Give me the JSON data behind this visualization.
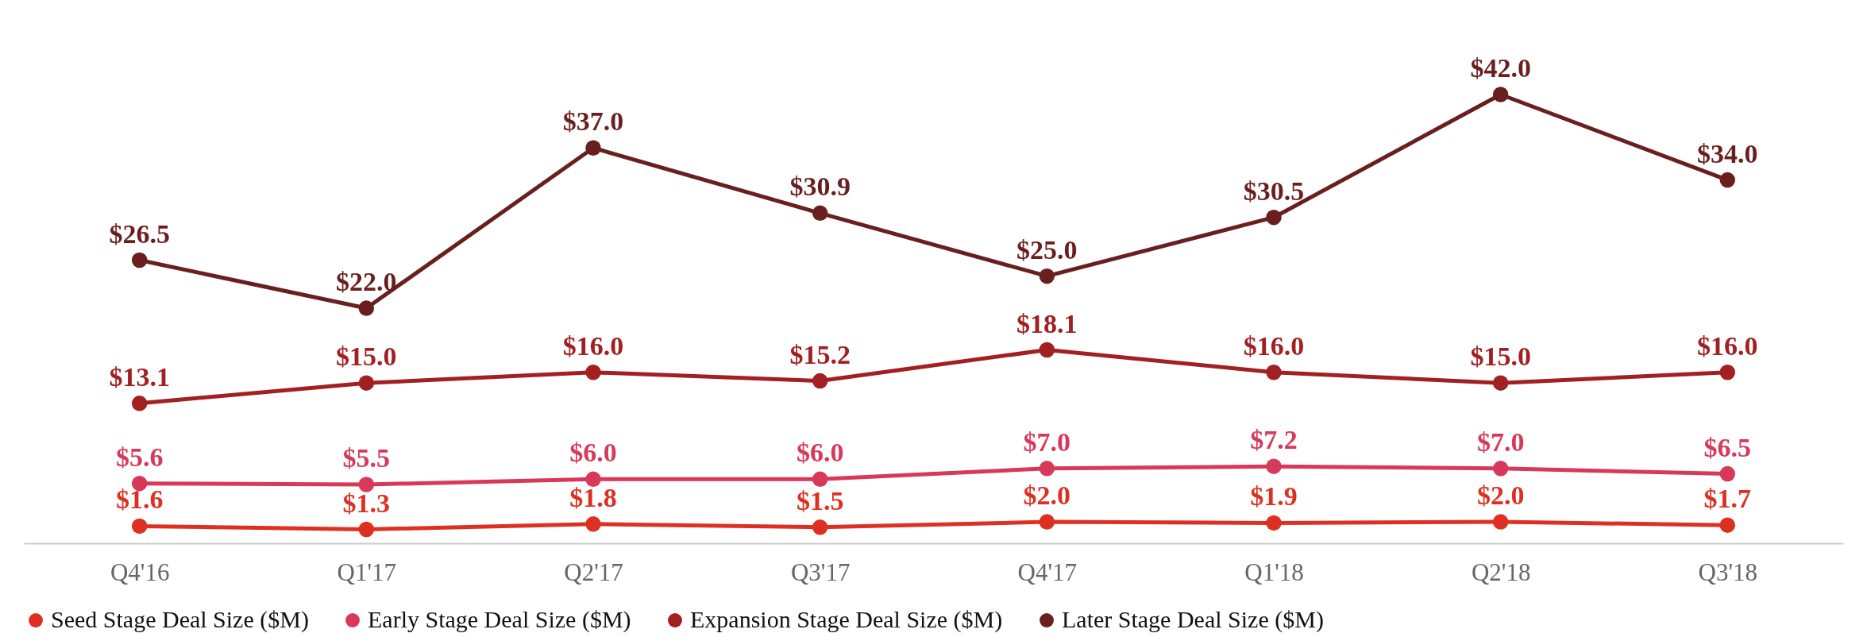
{
  "chart_data": {
    "type": "line",
    "categories": [
      "Q4'16",
      "Q1'17",
      "Q2'17",
      "Q3'17",
      "Q4'17",
      "Q1'18",
      "Q2'18",
      "Q3'18"
    ],
    "series": [
      {
        "name": "Seed Stage Deal Size ($M)",
        "color": "#de3020",
        "values": [
          1.6,
          1.3,
          1.8,
          1.5,
          2.0,
          1.9,
          2.0,
          1.7
        ],
        "value_labels": [
          "$1.6",
          "$1.3",
          "$1.8",
          "$1.5",
          "$2.0",
          "$1.9",
          "$2.0",
          "$1.7"
        ]
      },
      {
        "name": "Early Stage Deal Size ($M)",
        "color": "#d8395a",
        "values": [
          5.6,
          5.5,
          6.0,
          6.0,
          7.0,
          7.2,
          7.0,
          6.5
        ],
        "value_labels": [
          "$5.6",
          "$5.5",
          "$6.0",
          "$6.0",
          "$7.0",
          "$7.2",
          "$7.0",
          "$6.5"
        ]
      },
      {
        "name": "Expansion Stage Deal Size ($M)",
        "color": "#a21f22",
        "values": [
          13.1,
          15.0,
          16.0,
          15.2,
          18.1,
          16.0,
          15.0,
          16.0
        ],
        "value_labels": [
          "$13.1",
          "$15.0",
          "$16.0",
          "$15.2",
          "$18.1",
          "$16.0",
          "$15.0",
          "$16.0"
        ]
      },
      {
        "name": "Later Stage Deal Size ($M)",
        "color": "#6a1f1f",
        "values": [
          26.5,
          22.0,
          37.0,
          30.9,
          25.0,
          30.5,
          42.0,
          34.0
        ],
        "value_labels": [
          "$26.5",
          "$22.0",
          "$37.0",
          "$30.9",
          "$25.0",
          "$30.5",
          "$42.0",
          "$34.0"
        ]
      }
    ],
    "marker": "circle",
    "legend": "bottom",
    "grid": false
  }
}
